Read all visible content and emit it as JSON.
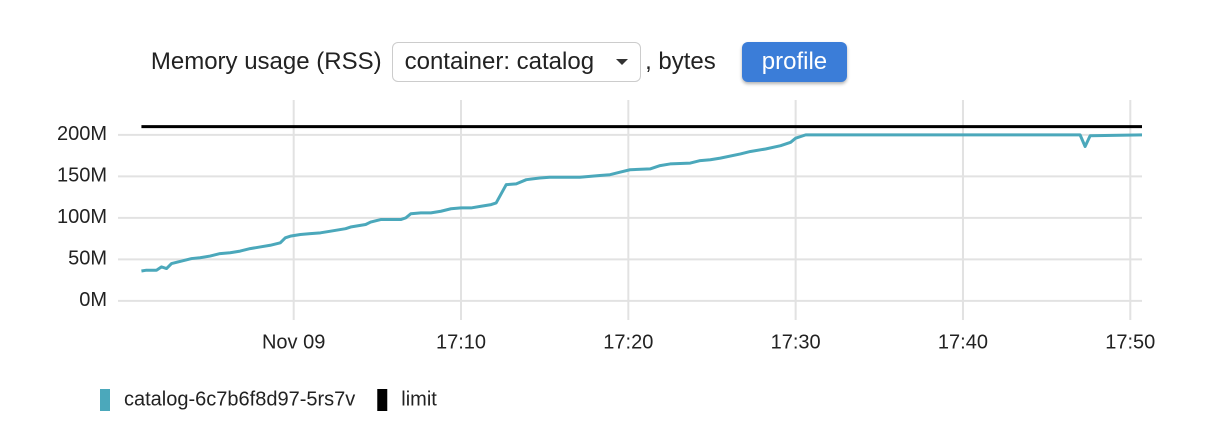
{
  "header": {
    "title": "Memory usage (RSS)",
    "selector": "container: catalog",
    "unit": ", bytes",
    "button": "profile"
  },
  "chart_data": {
    "type": "line",
    "xlim": [
      -10.5,
      50.7
    ],
    "xticks": [
      {
        "value": 0,
        "label": "Nov 09"
      },
      {
        "value": 10,
        "label": "17:10"
      },
      {
        "value": 20,
        "label": "17:20"
      },
      {
        "value": 30,
        "label": "17:30"
      },
      {
        "value": 40,
        "label": "17:40"
      },
      {
        "value": 50,
        "label": "17:50"
      }
    ],
    "ylim": [
      -23000000,
      242000000
    ],
    "yticks": [
      {
        "value": 0,
        "label": "0M"
      },
      {
        "value": 50000000,
        "label": "50M"
      },
      {
        "value": 100000000,
        "label": "100M"
      },
      {
        "value": 150000000,
        "label": "150M"
      },
      {
        "value": 200000000,
        "label": "200M"
      }
    ],
    "grid": true,
    "legend": "bottom-left",
    "series": [
      {
        "name": "catalog-6c7b6f8d97-5rs7v",
        "color": "#4ba8bb",
        "x": [
          -9.1,
          -8.8,
          -8.2,
          -7.9,
          -7.6,
          -7.3,
          -6.7,
          -6.1,
          -5.6,
          -5.0,
          -4.4,
          -3.8,
          -3.2,
          -2.6,
          -2.0,
          -1.4,
          -0.8,
          -0.5,
          -0.2,
          0.4,
          1.0,
          1.6,
          2.2,
          3.1,
          3.4,
          4.3,
          4.6,
          5.2,
          6.4,
          6.7,
          7.0,
          7.6,
          8.2,
          8.8,
          9.4,
          10.0,
          10.6,
          11.2,
          11.8,
          12.1,
          12.4,
          12.7,
          13.3,
          13.9,
          14.7,
          15.3,
          17.1,
          18.3,
          18.9,
          19.5,
          20.1,
          21.3,
          21.9,
          22.5,
          23.7,
          24.3,
          24.9,
          25.5,
          26.7,
          27.3,
          28.2,
          29.1,
          29.7,
          30.0,
          30.6,
          47.0,
          47.3,
          47.6,
          50.7
        ],
        "values": [
          36000000,
          37000000,
          37000000,
          41000000,
          39000000,
          45000000,
          48000000,
          51000000,
          52000000,
          54000000,
          57000000,
          58000000,
          60000000,
          63000000,
          65000000,
          67000000,
          70000000,
          76000000,
          78000000,
          80000000,
          81000000,
          82000000,
          84000000,
          87000000,
          89000000,
          92000000,
          95000000,
          98000000,
          98000000,
          100000000,
          105000000,
          106000000,
          106000000,
          108000000,
          111000000,
          112000000,
          112000000,
          114000000,
          116000000,
          118000000,
          129000000,
          140000000,
          141000000,
          146000000,
          148000000,
          149000000,
          149000000,
          151000000,
          152000000,
          155000000,
          158000000,
          159000000,
          163000000,
          165000000,
          166000000,
          169000000,
          170000000,
          172000000,
          177000000,
          180000000,
          183000000,
          187000000,
          191000000,
          196000000,
          200000000,
          200000000,
          186000000,
          199000000,
          200000000
        ]
      },
      {
        "name": "limit",
        "color": "#000000",
        "x": [
          -9.1,
          50.7
        ],
        "values": [
          210000000,
          210000000
        ]
      }
    ]
  }
}
